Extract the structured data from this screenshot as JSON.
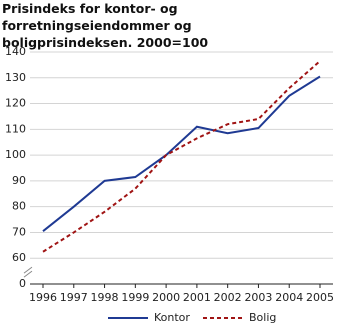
{
  "chart_data": {
    "type": "line",
    "title": "Prisindeks for kontor- og forretningseiendommer og boligprisindeksen. 2000=100",
    "categories": [
      "1996",
      "1997",
      "1998",
      "1999",
      "2000",
      "2001",
      "2002",
      "2003",
      "2004",
      "2005"
    ],
    "series": [
      {
        "name": "Kontor",
        "color": "#1f3a93",
        "dash": false,
        "values": [
          70.5,
          80,
          90,
          91.5,
          100,
          111,
          108.5,
          110.5,
          123,
          130.5
        ]
      },
      {
        "name": "Bolig",
        "color": "#a01414",
        "dash": true,
        "values": [
          62.5,
          70,
          78,
          87,
          100,
          106.5,
          112,
          114,
          126,
          136.5
        ]
      }
    ],
    "ylim": [
      0,
      140
    ],
    "yticks": [
      0,
      60,
      70,
      80,
      90,
      100,
      110,
      120,
      130,
      140
    ],
    "axis_break": [
      0,
      60
    ],
    "grid": true,
    "legend": "bottom"
  }
}
